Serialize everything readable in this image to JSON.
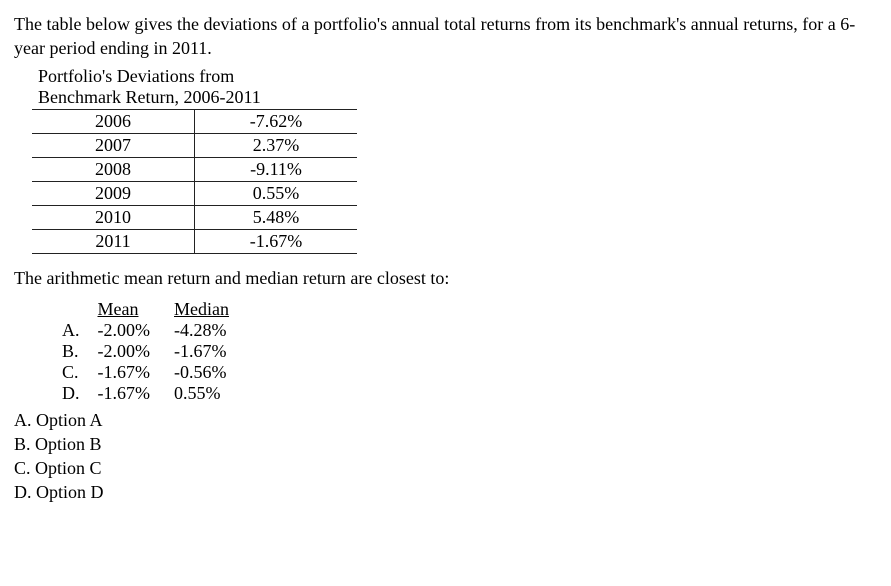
{
  "intro": "The table below gives the deviations of a portfolio's annual total returns from its benchmark's annual returns, for a 6-year period ending in 2011.",
  "devTable": {
    "title_line1": "Portfolio's Deviations from",
    "title_line2": "Benchmark Return, 2006-2011",
    "rows": [
      {
        "year": "2006",
        "value": "-7.62%"
      },
      {
        "year": "2007",
        "value": "2.37%"
      },
      {
        "year": "2008",
        "value": "-9.11%"
      },
      {
        "year": "2009",
        "value": "0.55%"
      },
      {
        "year": "2010",
        "value": "5.48%"
      },
      {
        "year": "2011",
        "value": "-1.67%"
      }
    ]
  },
  "question": "The arithmetic mean return and median return are closest to:",
  "ansHeaders": {
    "mean": "Mean",
    "median": "Median"
  },
  "ansRows": [
    {
      "label": "A.",
      "mean": "-2.00%",
      "median": "-4.28%"
    },
    {
      "label": "B.",
      "mean": "-2.00%",
      "median": "-1.67%"
    },
    {
      "label": "C.",
      "mean": "-1.67%",
      "median": "-0.56%"
    },
    {
      "label": "D.",
      "mean": "-1.67%",
      "median": "0.55%"
    }
  ],
  "options": {
    "a": "A. Option A",
    "b": "B. Option B",
    "c": "C. Option C",
    "d": "D. Option D"
  }
}
